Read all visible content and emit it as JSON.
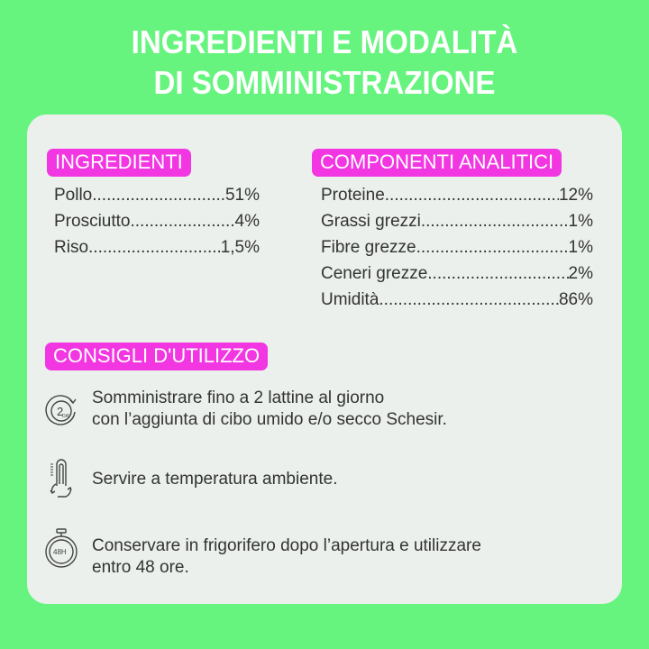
{
  "title": {
    "line1": "INGREDIENTI E MODALITÀ",
    "line2": "DI SOMMINISTRAZIONE"
  },
  "colors": {
    "background": "#66f47f",
    "panel": "#ebf0ec",
    "badge": "#f236e2"
  },
  "ingredients": {
    "heading": "INGREDIENTI",
    "items": [
      {
        "name": "Pollo",
        "value": "51%"
      },
      {
        "name": "Prosciutto",
        "value": "4%"
      },
      {
        "name": "Riso",
        "value": "1,5%"
      }
    ]
  },
  "analytics": {
    "heading": "COMPONENTI ANALITICI",
    "items": [
      {
        "name": "Proteine",
        "value": "12%"
      },
      {
        "name": "Grassi grezzi",
        "value": "1%"
      },
      {
        "name": "Fibre grezze",
        "value": "1%"
      },
      {
        "name": "Ceneri grezze",
        "value": "2%"
      },
      {
        "name": "Umidità",
        "value": "86%"
      }
    ]
  },
  "usage": {
    "heading": "CONSIGLI D'UTILIZZO",
    "items": [
      {
        "icon": "2-day-clock-icon",
        "icon_text": "2",
        "icon_sub": "DAY",
        "line1": "Somministrare fino a 2 lattine al giorno",
        "line2": "con l’aggiunta di cibo umido e/o secco Schesir."
      },
      {
        "icon": "thermometer-icon",
        "line1": "Servire a temperatura ambiente."
      },
      {
        "icon": "48h-stopwatch-icon",
        "icon_text": "48H",
        "line1": "Conservare in frigorifero dopo l’apertura e utilizzare",
        "line2": "entro 48 ore."
      }
    ]
  }
}
